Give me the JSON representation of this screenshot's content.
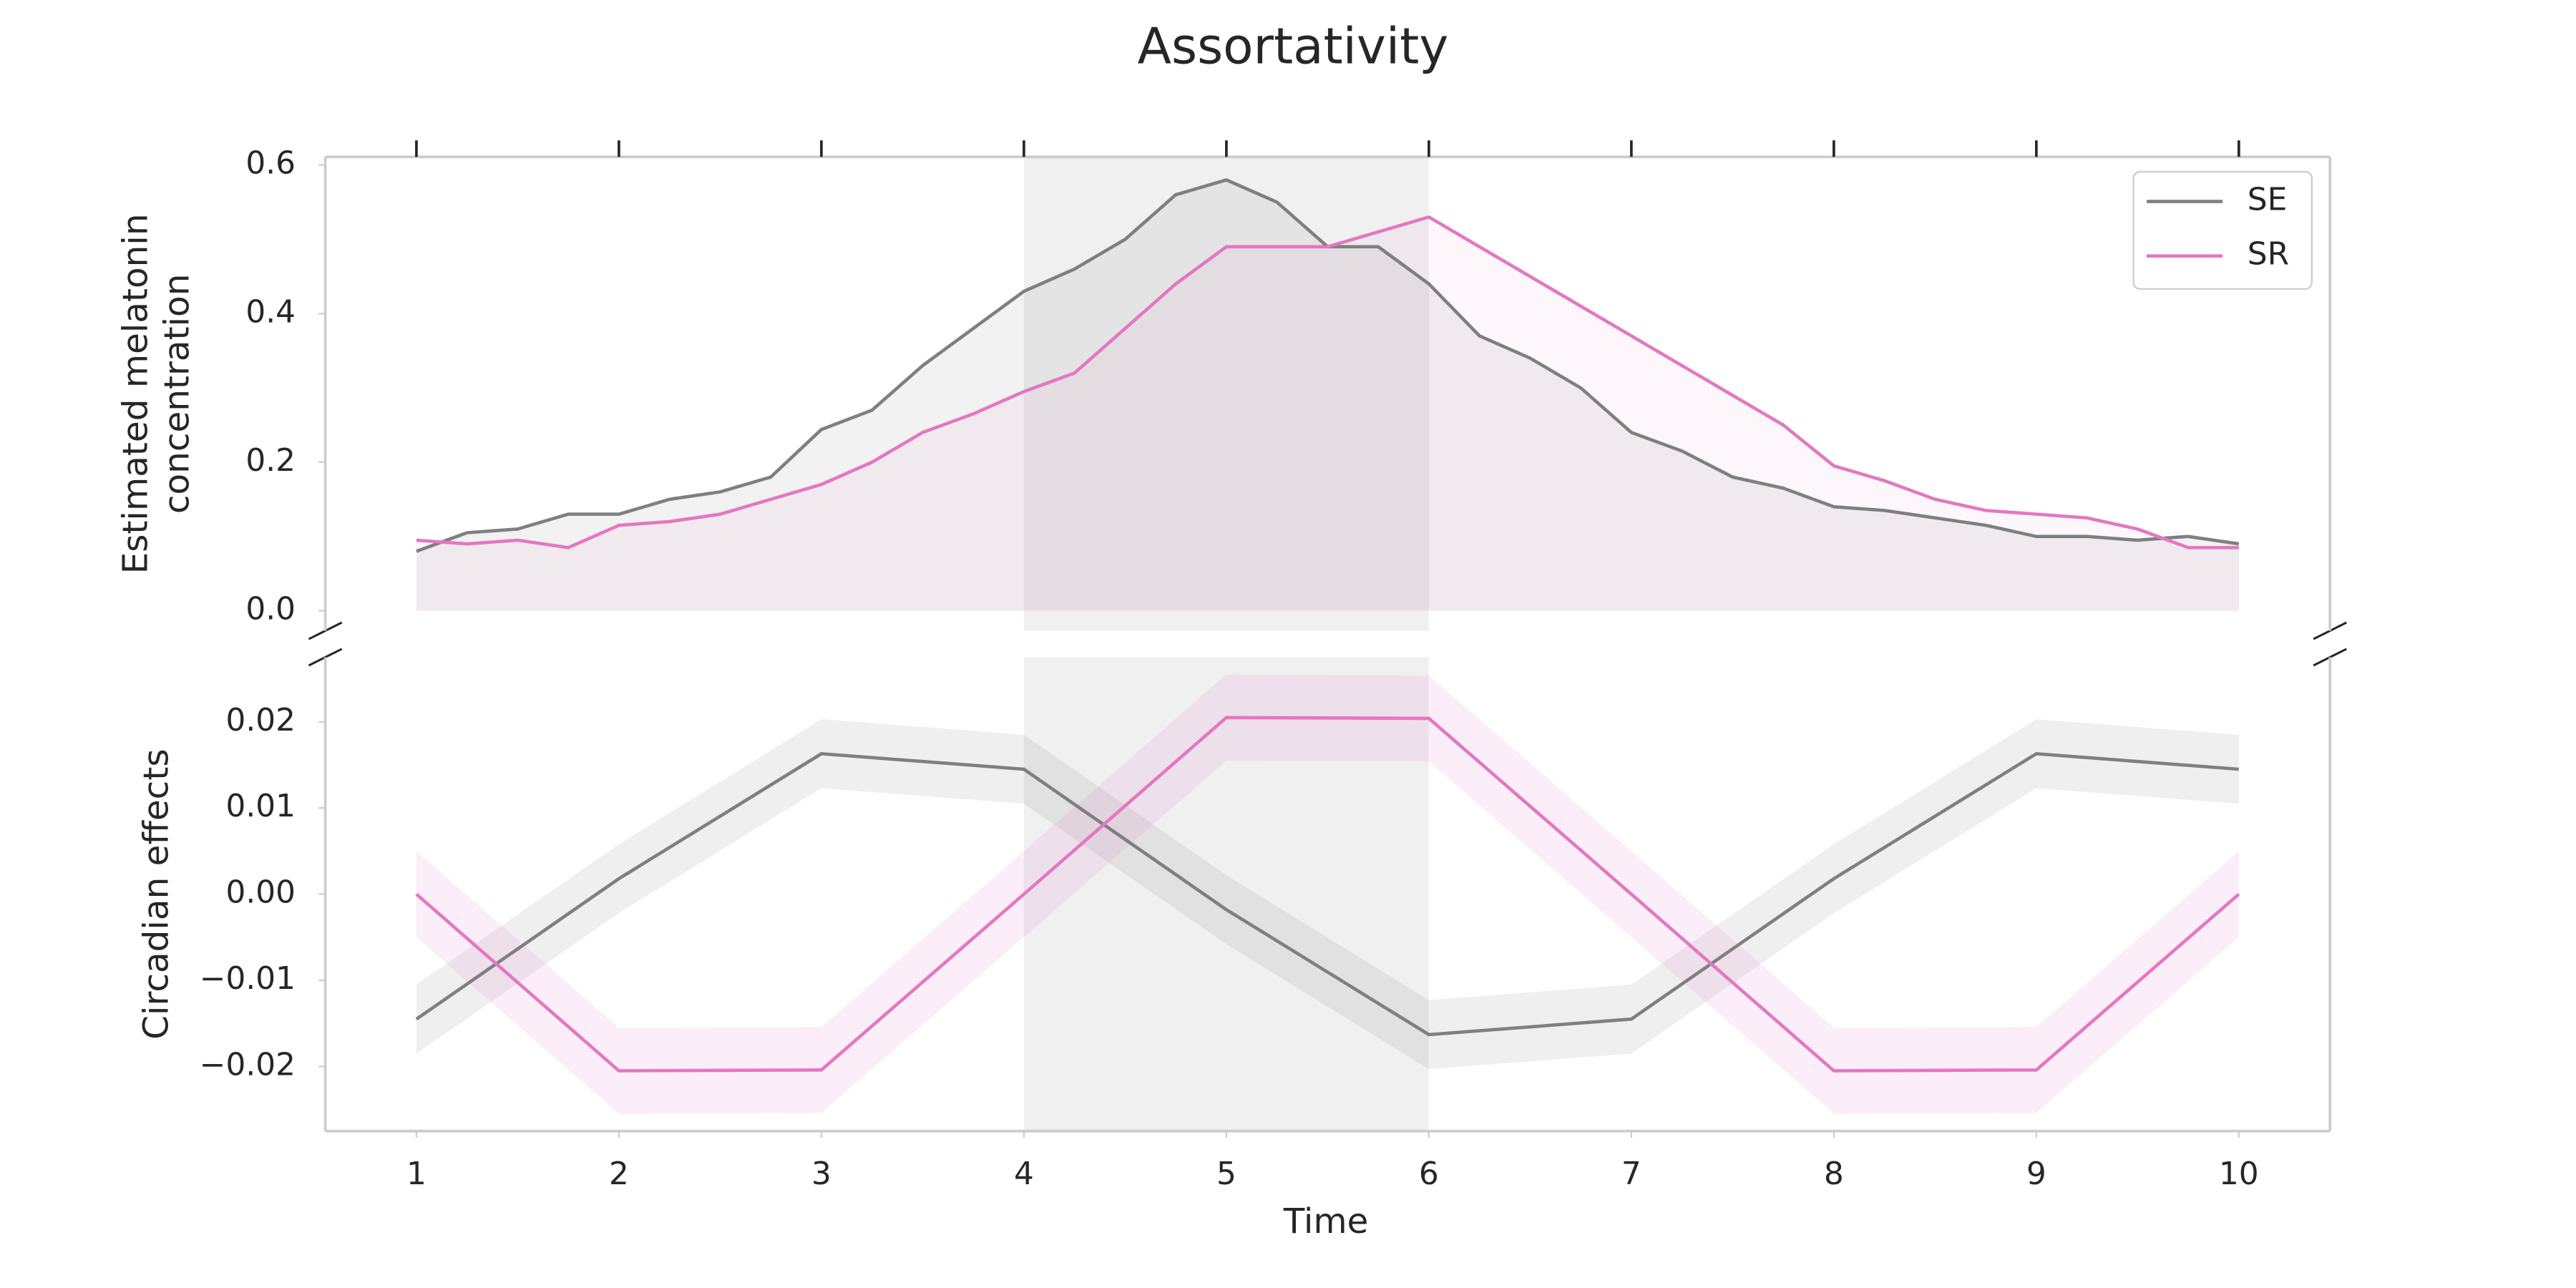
{
  "chart_data": [
    {
      "type": "line",
      "title": "Assortativity",
      "ylabel": [
        "Estimated melatonin",
        "concentration"
      ],
      "xlim": [
        0.55,
        10.45
      ],
      "ylim": [
        -0.027,
        0.611
      ],
      "xticks": [
        1,
        2,
        3,
        4,
        5,
        6,
        7,
        8,
        9,
        10
      ],
      "yticks": [
        {
          "value": 0,
          "label": "0.0"
        },
        0.2,
        0.4,
        0.6
      ],
      "shade": [
        4,
        6
      ],
      "legend": "upper right",
      "area": true,
      "x": [
        1,
        1.25,
        1.5,
        1.75,
        2,
        2.25,
        2.5,
        2.75,
        3,
        3.25,
        3.5,
        3.75,
        4,
        4.25,
        4.5,
        4.75,
        5,
        5.25,
        5.5,
        5.75,
        6,
        6.25,
        6.5,
        6.75,
        7,
        7.25,
        7.5,
        7.75,
        8,
        8.25,
        8.5,
        8.75,
        9,
        9.25,
        9.5,
        9.75,
        10
      ],
      "series": [
        {
          "name": "SE",
          "color": "#7f7f7f",
          "values": [
            0.08,
            0.105,
            0.11,
            0.13,
            0.13,
            0.15,
            0.16,
            0.18,
            0.244,
            0.27,
            0.33,
            0.38,
            0.43,
            0.46,
            0.5,
            0.56,
            0.58,
            0.55,
            0.49,
            0.49,
            0.44,
            0.37,
            0.34,
            0.3,
            0.24,
            0.215,
            0.18,
            0.165,
            0.14,
            0.135,
            0.125,
            0.115,
            0.1,
            0.1,
            0.095,
            0.1,
            0.09
          ]
        },
        {
          "name": "SR",
          "color": "#e377c2",
          "values": [
            0.095,
            0.09,
            0.095,
            0.085,
            0.115,
            0.12,
            0.13,
            0.15,
            0.17,
            0.2,
            0.24,
            0.265,
            0.295,
            0.32,
            0.38,
            0.44,
            0.49,
            0.49,
            0.49,
            0.51,
            0.53,
            0.49,
            0.45,
            0.41,
            0.37,
            0.33,
            0.29,
            0.25,
            0.195,
            0.175,
            0.15,
            0.135,
            0.13,
            0.125,
            0.11,
            0.085,
            0.085
          ]
        }
      ]
    },
    {
      "type": "line",
      "ylabel": [
        "Circadian effects"
      ],
      "xlabel": "Time",
      "xlim": [
        0.55,
        10.45
      ],
      "ylim": [
        -0.0275,
        0.0275
      ],
      "xticks": [
        1,
        2,
        3,
        4,
        5,
        6,
        7,
        8,
        9,
        10
      ],
      "yticks": [
        {
          "value": -0.02,
          "label": "−0.02"
        },
        {
          "value": -0.01,
          "label": "−0.01"
        },
        {
          "value": 0,
          "label": "0.00"
        },
        0.01,
        0.02
      ],
      "shade": [
        4,
        6
      ],
      "x": [
        1,
        2,
        3,
        4,
        5,
        6,
        7,
        8,
        9,
        10
      ],
      "series": [
        {
          "name": "SE",
          "color": "#7f7f7f",
          "values": [
            -0.0145,
            0.0018,
            0.0163,
            0.0145,
            -0.0018,
            -0.0163,
            -0.0145,
            0.0018,
            0.0163,
            0.0145
          ],
          "lower": [
            -0.0185,
            -0.0022,
            0.0123,
            0.0105,
            -0.0058,
            -0.0203,
            -0.0185,
            -0.0022,
            0.0123,
            0.0105
          ],
          "upper": [
            -0.0105,
            0.0058,
            0.0203,
            0.0185,
            0.0022,
            -0.0123,
            -0.0105,
            0.0058,
            0.0203,
            0.0185
          ]
        },
        {
          "name": "SR",
          "color": "#e377c2",
          "values": [
            0,
            -0.0205,
            -0.0204,
            0,
            0.0205,
            0.0204,
            0,
            -0.0205,
            -0.0204,
            0
          ],
          "lower": [
            -0.005,
            -0.0255,
            -0.0254,
            -0.005,
            0.0155,
            0.0154,
            -0.005,
            -0.0255,
            -0.0254,
            -0.005
          ],
          "upper": [
            0.005,
            -0.0155,
            -0.0154,
            0.005,
            0.0255,
            0.0254,
            0.005,
            -0.0155,
            -0.0154,
            0.005
          ]
        }
      ]
    }
  ]
}
